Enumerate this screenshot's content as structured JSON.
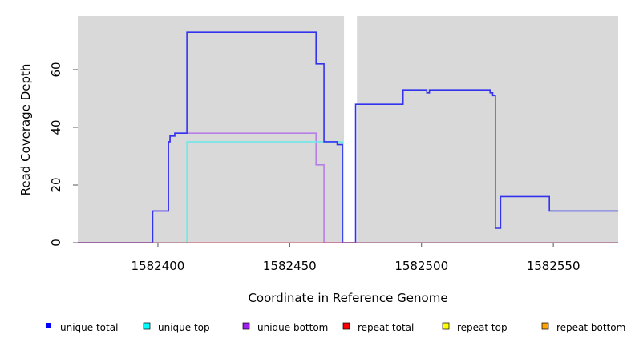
{
  "chart_data": {
    "type": "line",
    "title": "",
    "xlabel": "Coordinate in Reference Genome",
    "ylabel": "Read Coverage Depth",
    "xlim": [
      1582369.6,
      1582574.6
    ],
    "ylim": [
      0,
      78.6
    ],
    "xticks": [
      1582400,
      1582450,
      1582500,
      1582550
    ],
    "yticks": [
      0,
      20,
      40,
      60
    ],
    "gaps": [
      [
        1582470.6,
        1582475.5
      ]
    ],
    "background": "#d9d9d9",
    "series": [
      {
        "name": "unique bottom",
        "color": "#b77ee8",
        "steps": [
          [
            1582369.6,
            0
          ],
          [
            1582398,
            11
          ],
          [
            1582404,
            35
          ],
          [
            1582404.6,
            37
          ],
          [
            1582406.4,
            38
          ],
          [
            1582460,
            27
          ],
          [
            1582463,
            0
          ],
          [
            1582574.6,
            0
          ]
        ]
      },
      {
        "name": "unique top",
        "color": "#6ee8e8",
        "steps": [
          [
            1582369.6,
            0
          ],
          [
            1582411,
            35
          ],
          [
            1582470,
            0
          ],
          [
            1582574.6,
            0
          ]
        ]
      },
      {
        "name": "unique total",
        "color": "#3333ee",
        "steps": [
          [
            1582369.6,
            0
          ],
          [
            1582398,
            11
          ],
          [
            1582404,
            35
          ],
          [
            1582404.6,
            37
          ],
          [
            1582406.4,
            38
          ],
          [
            1582411,
            73
          ],
          [
            1582460,
            62
          ],
          [
            1582463,
            35
          ],
          [
            1582468,
            34
          ],
          [
            1582470,
            0
          ],
          [
            1582475,
            48
          ],
          [
            1582493,
            53
          ],
          [
            1582502,
            52
          ],
          [
            1582503,
            53
          ],
          [
            1582526,
            52
          ],
          [
            1582527,
            51
          ],
          [
            1582528,
            5
          ],
          [
            1582530,
            16
          ],
          [
            1582548.5,
            11
          ],
          [
            1582574.6,
            11
          ]
        ]
      }
    ],
    "legend": [
      {
        "label": "unique total",
        "color": "#0000ff"
      },
      {
        "label": "unique top",
        "color": "#00ffff"
      },
      {
        "label": "unique bottom",
        "color": "#a020f0"
      },
      {
        "label": "repeat total",
        "color": "#ff0000"
      },
      {
        "label": "repeat top",
        "color": "#ffff00"
      },
      {
        "label": "repeat bottom",
        "color": "#ffa500"
      }
    ],
    "legend_placement": "bottom"
  }
}
